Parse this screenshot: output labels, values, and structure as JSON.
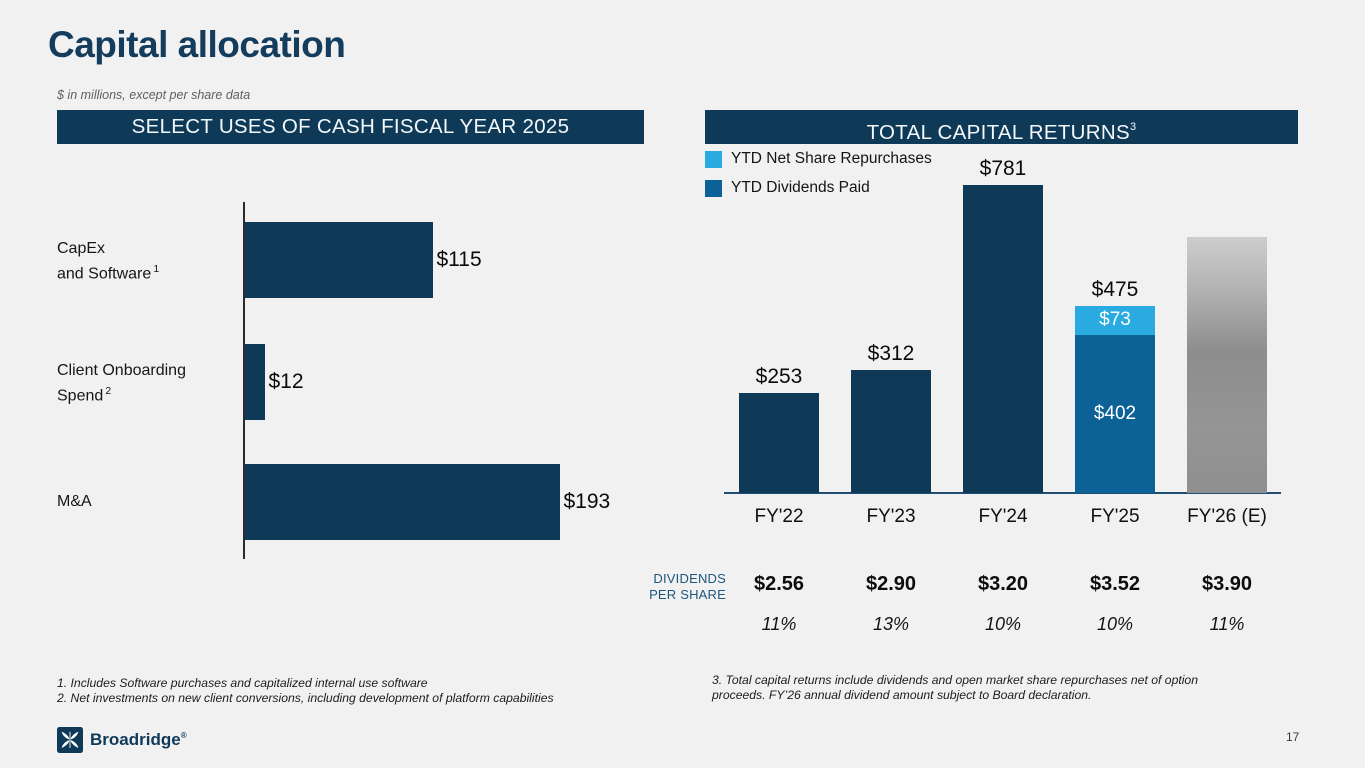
{
  "slide": {
    "title": "Capital allocation",
    "subtitle": "$ in millions, except per share data",
    "page_number": "17",
    "footer_brand": "Broadridge",
    "footer_brand_mark": "®"
  },
  "colors": {
    "navy": "#0e3a58",
    "medium_blue": "#0c6297",
    "light_blue": "#29abe2",
    "estimate_gray_top": "#cdcdcd",
    "estimate_gray_mid": "#8d8d8d",
    "estimate_gray_bottom": "#8f8f8f",
    "title_navy": "#133c5d",
    "background": "#f1f1f1"
  },
  "chart_data": [
    {
      "type": "bar",
      "orientation": "horizontal",
      "title": "SELECT USES OF CASH FISCAL YEAR 2025",
      "xlim": [
        0,
        220
      ],
      "grid": false,
      "bars": [
        {
          "category_lines": [
            "CapEx",
            "and Software"
          ],
          "footnote_ref": "1",
          "value": 115,
          "label": "$115"
        },
        {
          "category_lines": [
            "Client Onboarding",
            "Spend"
          ],
          "footnote_ref": "2",
          "value": 12,
          "label": "$12"
        },
        {
          "category_lines": [
            "M&A"
          ],
          "footnote_ref": "",
          "value": 193,
          "label": "$193"
        }
      ]
    },
    {
      "type": "bar",
      "subtype": "stacked-vertical",
      "title": "TOTAL CAPITAL RETURNS",
      "title_sup": "3",
      "ylim": [
        0,
        850
      ],
      "grid": false,
      "legend_position": "top-left",
      "legend": [
        {
          "label": "YTD Net Share Repurchases",
          "color": "#29abe2"
        },
        {
          "label": "YTD Dividends Paid",
          "color": "#0c6297"
        }
      ],
      "bars": [
        {
          "category": "FY'22",
          "total_label": "$253",
          "estimate": false,
          "segments": [
            {
              "series": "YTD Dividends Paid",
              "value": 253,
              "color": "#0e3a58",
              "label": ""
            }
          ]
        },
        {
          "category": "FY'23",
          "total_label": "$312",
          "estimate": false,
          "segments": [
            {
              "series": "YTD Dividends Paid",
              "value": 312,
              "color": "#0e3a58",
              "label": ""
            }
          ]
        },
        {
          "category": "FY'24",
          "total_label": "$781",
          "estimate": false,
          "segments": [
            {
              "series": "YTD Dividends Paid",
              "value": 781,
              "color": "#0e3a58",
              "label": ""
            }
          ]
        },
        {
          "category": "FY'25",
          "total_label": "$475",
          "estimate": false,
          "segments": [
            {
              "series": "YTD Dividends Paid",
              "value": 402,
              "color": "#0c6297",
              "label": "$402"
            },
            {
              "series": "YTD Net Share Repurchases",
              "value": 73,
              "color": "#29abe2",
              "label": "$73"
            }
          ]
        },
        {
          "category": "FY'26 (E)",
          "total_label": "",
          "estimate": true,
          "estimated_value": 650,
          "segments": []
        }
      ],
      "dividends_table": {
        "row_label_lines": [
          "DIVIDENDS",
          "PER SHARE"
        ],
        "per_share": [
          "$2.56",
          "$2.90",
          "$3.20",
          "$3.52",
          "$3.90"
        ],
        "growth_pct": [
          "11%",
          "13%",
          "10%",
          "10%",
          "11%"
        ]
      }
    }
  ],
  "footnotes": {
    "left": [
      "1. Includes Software purchases and capitalized internal use software",
      "2. Net investments on new client conversions, including development of platform capabilities"
    ],
    "right": [
      "3. Total capital returns include dividends and open market share repurchases net of option",
      "proceeds. FY’26 annual dividend amount subject to Board declaration."
    ]
  }
}
